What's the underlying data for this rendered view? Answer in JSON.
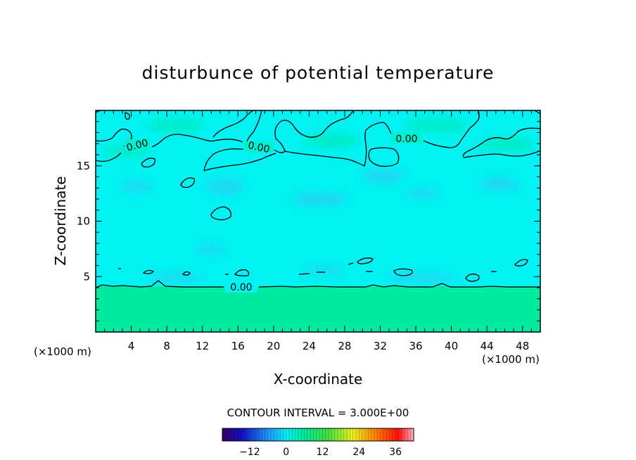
{
  "chart_data": {
    "type": "heatmap",
    "title": "disturbunce of potential temperature",
    "xlabel": "X-coordinate",
    "ylabel": "Z-coordinate",
    "x_unit": "(×1000 m)",
    "y_unit": "(×1000 m)",
    "xlim": [
      0,
      50
    ],
    "ylim": [
      0,
      20
    ],
    "x_ticks": [
      4,
      8,
      12,
      16,
      20,
      24,
      28,
      32,
      36,
      40,
      44,
      48
    ],
    "y_ticks": [
      5,
      10,
      15
    ],
    "contour_interval_text": "CONTOUR INTERVAL = 3.000E+00",
    "contour_labels": [
      {
        "text": "0.00",
        "x": 4.7,
        "z": 16.9
      },
      {
        "text": "0.00",
        "x": 18.3,
        "z": 16.5
      },
      {
        "text": "0.00",
        "x": 34.2,
        "z": 17.6
      },
      {
        "text": "0.00",
        "x": 16.4,
        "z": 4.2
      }
    ],
    "colorbar": {
      "min": -21,
      "max": 42,
      "ticks": [
        -12,
        0,
        12,
        24,
        36
      ],
      "tick_labels": [
        "-12",
        "0",
        "12",
        "24",
        "36"
      ]
    },
    "colors": {
      "upper_field": "#00f2f2",
      "lower_field": "#00eaa0",
      "dark_patch": "#2ad0f2"
    }
  }
}
